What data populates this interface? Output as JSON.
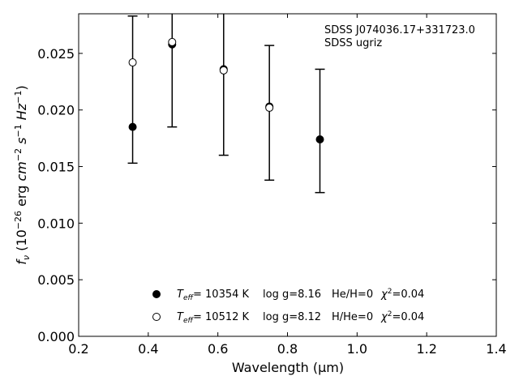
{
  "chart_data": {
    "type": "scatter",
    "xlabel": "Wavelength (μm)",
    "ylabel_parts": {
      "f": "f",
      "nu": "ν",
      "open": " (10",
      "exp1": "−26",
      "erg": " erg ",
      "cm": "cm",
      "exp2": "−2",
      "s": " s",
      "exp3": "−1",
      "hz": " Hz",
      "exp4": "−1",
      "close": ")"
    },
    "xlim": [
      0.2,
      1.4
    ],
    "ylim": [
      0.0,
      0.0285
    ],
    "x_ticks": [
      "0.2",
      "0.4",
      "0.6",
      "0.8",
      "1.0",
      "1.2",
      "1.4"
    ],
    "y_ticks": [
      "0.000",
      "0.005",
      "0.010",
      "0.015",
      "0.020",
      "0.025"
    ],
    "annotation": [
      "SDSS J074036.17+331723.0",
      "SDSS ugriz"
    ],
    "observed": {
      "x": [
        0.3551,
        0.4686,
        0.6166,
        0.748,
        0.8932
      ],
      "y": [
        0.0185,
        0.0258,
        0.0236,
        0.0203,
        0.0174
      ],
      "yerr_low": [
        0.0153,
        0.0185,
        0.016,
        0.0138,
        0.0127
      ],
      "yerr_high": [
        0.0283,
        0.033,
        0.0312,
        0.0257,
        0.0236
      ]
    },
    "model": {
      "x": [
        0.3551,
        0.4686,
        0.6166,
        0.748
      ],
      "y": [
        0.0242,
        0.026,
        0.0235,
        0.0202
      ]
    },
    "legend": {
      "placement": "bottom-center",
      "entries": [
        {
          "marker": "filled",
          "teff_T": "T",
          "teff_sub": "eff",
          "teff_value": "= 10354 K",
          "logg": "log g=8.16",
          "comp": "He/H=0",
          "chi": "χ",
          "chi_sup": "2",
          "chi_value": "=0.04"
        },
        {
          "marker": "open",
          "teff_T": "T",
          "teff_sub": "eff",
          "teff_value": "= 10512 K",
          "logg": "log g=8.12",
          "comp": "H/He=0",
          "chi": "χ",
          "chi_sup": "2",
          "chi_value": "=0.04"
        }
      ]
    }
  }
}
